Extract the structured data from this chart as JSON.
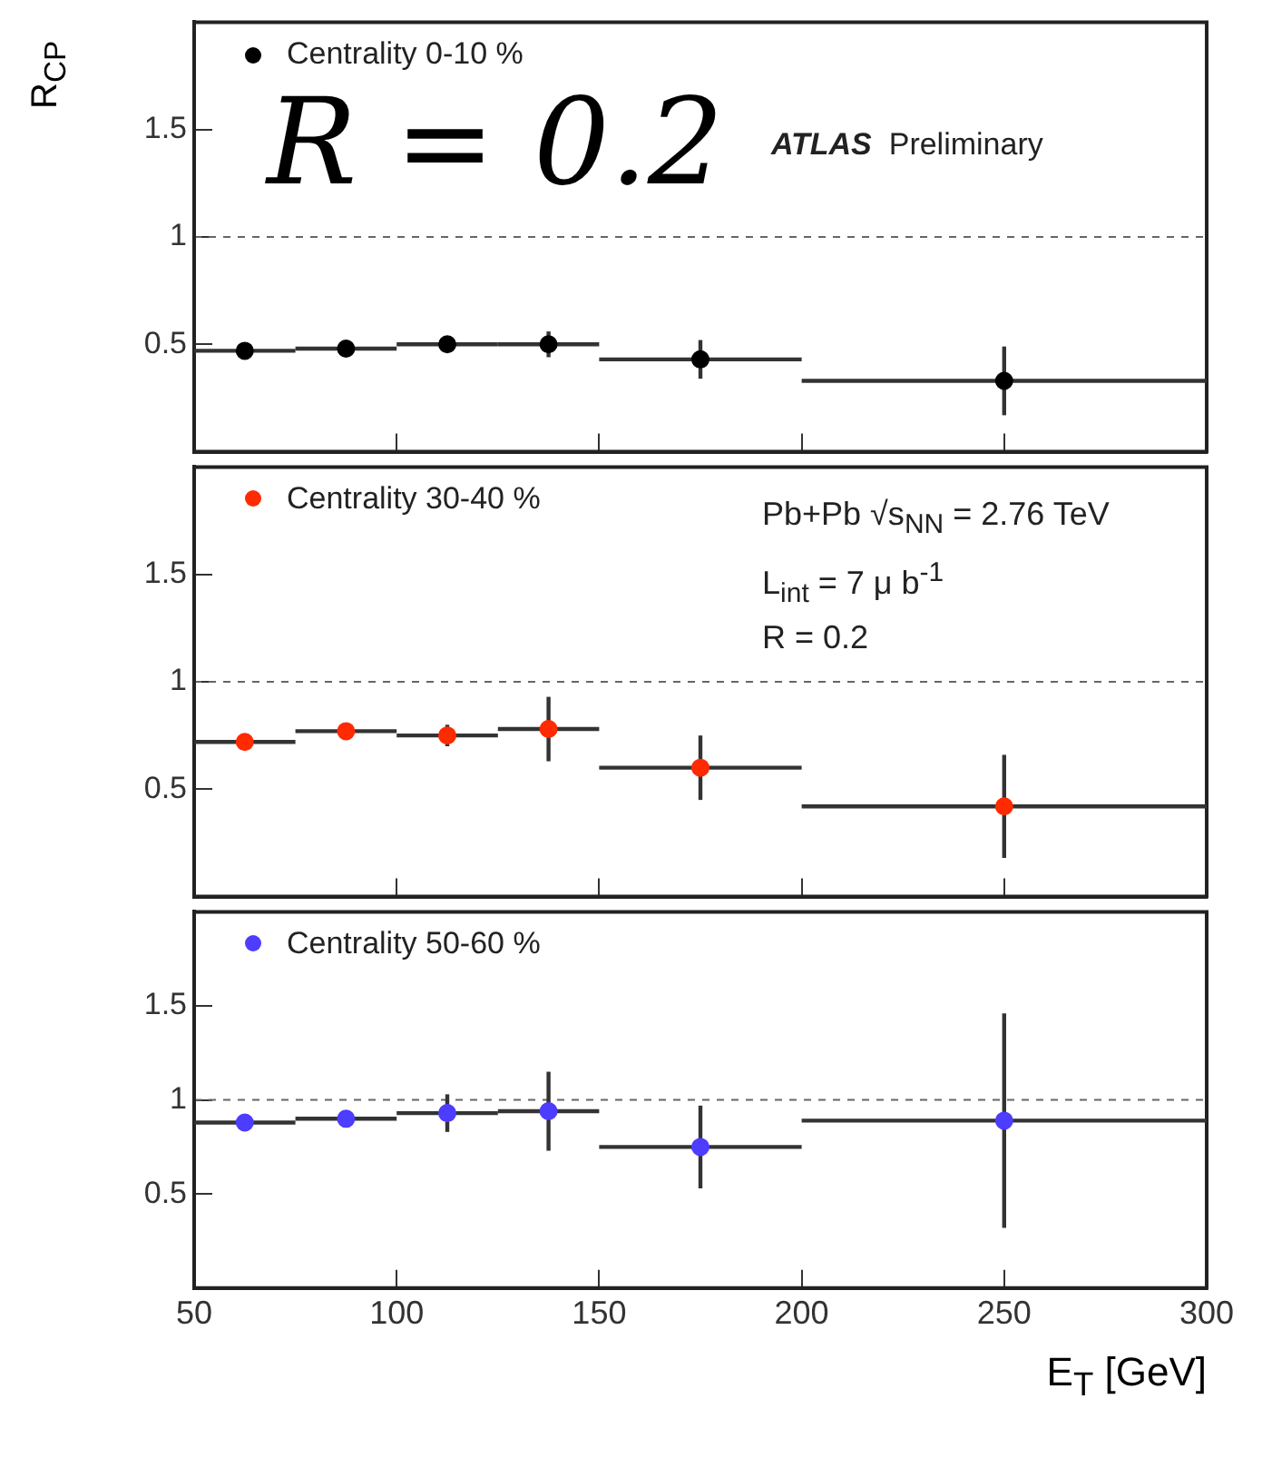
{
  "chart_data": [
    {
      "type": "scatter",
      "ylabel": "R$_{CP}$",
      "annotations": [
        "R = 0.2",
        "ATLAS Preliminary"
      ],
      "x": [
        62.5,
        87.5,
        112.5,
        137.5,
        175,
        250
      ],
      "series": [
        {
          "name": "Centrality  0-10 %",
          "color": "#000000",
          "values": [
            0.47,
            0.48,
            0.5,
            0.5,
            0.43,
            0.33
          ],
          "errors": [
            null,
            null,
            0.03,
            0.06,
            0.09,
            0.16
          ],
          "xerrors": [
            12.5,
            12.5,
            12.5,
            12.5,
            25,
            50
          ]
        }
      ],
      "xlim": [
        50,
        300
      ],
      "xticks": [
        50,
        100,
        150,
        200,
        250,
        300
      ],
      "ylim": [
        0,
        2
      ],
      "yticks": [
        0.5,
        1,
        1.5
      ],
      "tick_labels": "y",
      "marker": "circle",
      "legend": "top left",
      "grid": false,
      "ref_lines": [
        {
          "axis": "y",
          "value": 1,
          "line_style": "dashed",
          "color": "#666666"
        }
      ]
    },
    {
      "type": "scatter",
      "annotations": [
        "Pb+Pb √s$_{NN}$ = 2.76 TeV",
        "L$_{int}$ = 7 μ b$^{-1}$",
        "R = 0.2"
      ],
      "x": [
        62.5,
        87.5,
        112.5,
        137.5,
        175,
        250
      ],
      "series": [
        {
          "name": "Centrality 30-40 %",
          "color": "#ff2a00",
          "values": [
            0.72,
            0.77,
            0.75,
            0.78,
            0.6,
            0.42
          ],
          "errors": [
            null,
            null,
            0.05,
            0.15,
            0.15,
            0.24
          ],
          "xerrors": [
            12.5,
            12.5,
            12.5,
            12.5,
            25,
            50
          ]
        }
      ],
      "xlim": [
        50,
        300
      ],
      "xticks": [
        50,
        100,
        150,
        200,
        250,
        300
      ],
      "ylim": [
        0,
        2
      ],
      "yticks": [
        0.5,
        1,
        1.5
      ],
      "tick_labels": "y",
      "marker": "circle",
      "legend": "top left",
      "grid": false,
      "ref_lines": [
        {
          "axis": "y",
          "value": 1,
          "line_style": "dashed",
          "color": "#666666"
        }
      ]
    },
    {
      "type": "scatter",
      "xlabel": "E$_{T}$  [GeV]",
      "x": [
        62.5,
        87.5,
        112.5,
        137.5,
        175,
        250
      ],
      "series": [
        {
          "name": "Centrality 50-60 %",
          "color": "#4d3dff",
          "values": [
            0.88,
            0.9,
            0.93,
            0.94,
            0.75,
            0.89
          ],
          "errors": [
            null,
            null,
            0.1,
            0.21,
            0.22,
            0.57
          ],
          "xerrors": [
            12.5,
            12.5,
            12.5,
            12.5,
            25,
            50
          ]
        }
      ],
      "xlim": [
        50,
        300
      ],
      "xticks": [
        50,
        100,
        150,
        200,
        250,
        300
      ],
      "ylim": [
        0,
        2
      ],
      "yticks": [
        0.5,
        1,
        1.5
      ],
      "marker": "circle",
      "legend": "top left",
      "grid": false,
      "ref_lines": [
        {
          "axis": "y",
          "value": 1,
          "line_style": "dashed",
          "color": "#666666"
        }
      ]
    }
  ]
}
